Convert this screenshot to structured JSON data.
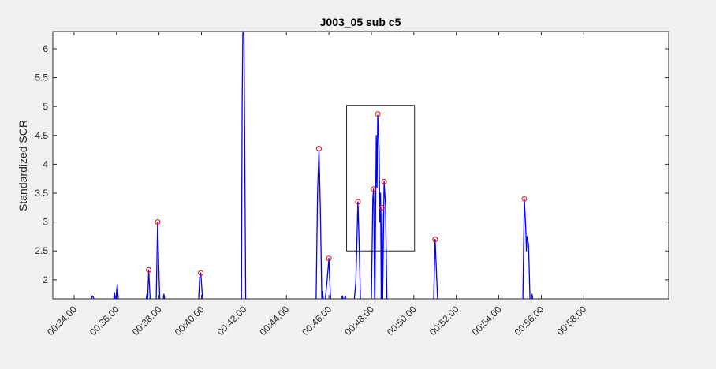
{
  "chart_data": {
    "type": "line",
    "title": "J003_05 sub c5",
    "xlabel": "",
    "ylabel": "Standardized SCR",
    "xlim": [
      "00:33:00",
      "00:62:00"
    ],
    "ylim": [
      1.67,
      6.3
    ],
    "xticks": [
      "00:34:00",
      "00:36:00",
      "00:38:00",
      "00:40:00",
      "00:42:00",
      "00:44:00",
      "00:46:00",
      "00:48:00",
      "00:50:00",
      "00:52:00",
      "00:54:00",
      "00:56:00",
      "00:58:00"
    ],
    "yticks": [
      2,
      2.5,
      3,
      3.5,
      4,
      4.5,
      5,
      5.5,
      6
    ],
    "grid": false,
    "line_color": "#0000ff",
    "marker_color": "#ff0000",
    "series": [
      {
        "segments": [
          [
            [
              "00:34:48",
              1.67
            ],
            [
              "00:34:52",
              1.72
            ],
            [
              "00:34:56",
              1.67
            ]
          ],
          [
            [
              "00:35:52",
              1.67
            ],
            [
              "00:35:54",
              1.78
            ],
            [
              "00:35:56",
              1.67
            ]
          ],
          [
            [
              "00:35:58",
              1.67
            ],
            [
              "00:36:02",
              1.92
            ],
            [
              "00:36:05",
              1.67
            ]
          ],
          [
            [
              "00:37:24",
              1.67
            ],
            [
              "00:37:26",
              1.75
            ],
            [
              "00:37:27",
              1.67
            ]
          ],
          [
            [
              "00:37:28",
              1.67
            ],
            [
              "00:37:31",
              2.17
            ],
            [
              "00:37:35",
              1.67
            ]
          ],
          [
            [
              "00:37:52",
              1.67
            ],
            [
              "00:37:56",
              3.0
            ],
            [
              "00:37:59",
              2.3
            ],
            [
              "00:38:02",
              1.67
            ]
          ],
          [
            [
              "00:38:12",
              1.67
            ],
            [
              "00:38:14",
              1.75
            ],
            [
              "00:38:16",
              1.67
            ]
          ],
          [
            [
              "00:39:52",
              1.67
            ],
            [
              "00:39:55",
              2.05
            ],
            [
              "00:39:58",
              2.12
            ],
            [
              "00:40:03",
              1.67
            ]
          ],
          [
            [
              "00:41:53",
              1.67
            ],
            [
              "00:41:55",
              5.0
            ],
            [
              "00:41:57",
              6.3
            ],
            [
              "00:42:00",
              6.3
            ],
            [
              "00:42:02",
              4.5
            ],
            [
              "00:42:05",
              1.67
            ]
          ],
          [
            [
              "00:45:24",
              1.67
            ],
            [
              "00:45:28",
              3.5
            ],
            [
              "00:45:32",
              4.25
            ],
            [
              "00:45:36",
              3.2
            ],
            [
              "00:45:40",
              1.67
            ]
          ],
          [
            [
              "00:45:40",
              1.67
            ],
            [
              "00:45:42",
              1.8
            ],
            [
              "00:45:44",
              1.67
            ]
          ],
          [
            [
              "00:45:50",
              1.67
            ],
            [
              "00:45:55",
              2.0
            ],
            [
              "00:46:00",
              2.37
            ],
            [
              "00:46:03",
              1.9
            ],
            [
              "00:46:05",
              1.67
            ]
          ],
          [
            [
              "00:46:36",
              1.67
            ],
            [
              "00:46:38",
              1.72
            ],
            [
              "00:46:40",
              1.67
            ]
          ],
          [
            [
              "00:46:44",
              1.67
            ],
            [
              "00:46:46",
              1.72
            ],
            [
              "00:46:48",
              1.67
            ]
          ],
          [
            [
              "00:47:12",
              1.67
            ],
            [
              "00:47:16",
              1.95
            ],
            [
              "00:47:18",
              2.4
            ],
            [
              "00:47:22",
              3.35
            ],
            [
              "00:47:26",
              2.5
            ],
            [
              "00:47:29",
              1.67
            ]
          ],
          [
            [
              "00:48:00",
              1.67
            ],
            [
              "00:48:04",
              3.4
            ],
            [
              "00:48:06",
              3.57
            ],
            [
              "00:48:07",
              3.3
            ],
            [
              "00:48:09",
              1.67
            ]
          ],
          [
            [
              "00:48:10",
              1.67
            ],
            [
              "00:48:12",
              3.3
            ],
            [
              "00:48:14",
              4.5
            ],
            [
              "00:48:16",
              3.6
            ],
            [
              "00:48:18",
              4.85
            ],
            [
              "00:48:20",
              4.6
            ],
            [
              "00:48:22",
              4.2
            ],
            [
              "00:48:24",
              3.0
            ],
            [
              "00:48:26",
              3.5
            ],
            [
              "00:48:28",
              1.67
            ]
          ],
          [
            [
              "00:48:28",
              1.67
            ],
            [
              "00:48:30",
              3.25
            ],
            [
              "00:48:32",
              1.67
            ]
          ],
          [
            [
              "00:48:32",
              1.67
            ],
            [
              "00:48:36",
              3.7
            ],
            [
              "00:48:40",
              3.3
            ],
            [
              "00:48:44",
              1.67
            ]
          ],
          [
            [
              "00:50:56",
              1.67
            ],
            [
              "00:51:00",
              2.7
            ],
            [
              "00:51:04",
              2.1
            ],
            [
              "00:51:07",
              1.67
            ]
          ],
          [
            [
              "00:55:08",
              1.67
            ],
            [
              "00:55:12",
              3.4
            ],
            [
              "00:55:16",
              2.9
            ],
            [
              "00:55:18",
              2.5
            ],
            [
              "00:55:20",
              2.75
            ],
            [
              "00:55:24",
              2.6
            ],
            [
              "00:55:28",
              1.67
            ]
          ],
          [
            [
              "00:55:32",
              1.67
            ],
            [
              "00:55:34",
              1.75
            ],
            [
              "00:55:36",
              1.67
            ]
          ]
        ]
      }
    ],
    "peaks": [
      [
        "00:37:31",
        2.17
      ],
      [
        "00:37:56",
        3.0
      ],
      [
        "00:39:58",
        2.12
      ],
      [
        "00:45:32",
        4.27
      ],
      [
        "00:46:00",
        2.37
      ],
      [
        "00:47:22",
        3.35
      ],
      [
        "00:48:06",
        3.57
      ],
      [
        "00:48:18",
        4.87
      ],
      [
        "00:48:30",
        3.25
      ],
      [
        "00:48:36",
        3.7
      ],
      [
        "00:51:00",
        2.7
      ],
      [
        "00:55:12",
        3.4
      ]
    ],
    "annotation_box": {
      "x": [
        "00:46:50",
        "00:50:02"
      ],
      "y": [
        2.5,
        5.02
      ]
    }
  }
}
